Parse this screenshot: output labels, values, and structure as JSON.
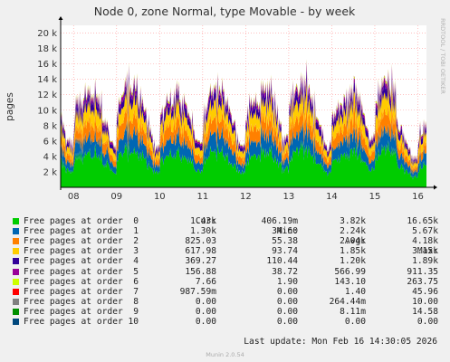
{
  "chart_data": {
    "type": "area",
    "stacked": true,
    "title": "Node 0, zone Normal, type Movable - by week",
    "ylabel": "pages",
    "xlabel": "",
    "ylim": [
      0,
      21000
    ],
    "ytick_labels": [
      "2 k",
      "4 k",
      "6 k",
      "8 k",
      "10 k",
      "12 k",
      "14 k",
      "16 k",
      "18 k",
      "20 k"
    ],
    "yticks": [
      2000,
      4000,
      6000,
      8000,
      10000,
      12000,
      14000,
      16000,
      18000,
      20000
    ],
    "x_range": [
      7.7,
      16.2
    ],
    "xtick_labels": [
      "08",
      "09",
      "10",
      "11",
      "12",
      "13",
      "14",
      "15",
      "16"
    ],
    "xticks": [
      8,
      9,
      10,
      11,
      12,
      13,
      14,
      15,
      16
    ],
    "grid": true,
    "watermark": "RRDTOOL / TOBI OETIKER",
    "approx_daily_peak_totals": [
      14300,
      15400,
      13800,
      14900,
      13900,
      16100,
      13400,
      16600,
      10200
    ],
    "series": [
      {
        "name": "Free pages at order  0",
        "color": "#00cc00",
        "cur": "1.43k",
        "min": "406.19m",
        "avg": "3.82k",
        "max": "16.65k"
      },
      {
        "name": "Free pages at order  1",
        "color": "#0066b3",
        "cur": "1.30k",
        "min": "34.60",
        "avg": "2.24k",
        "max": "5.67k"
      },
      {
        "name": "Free pages at order  2",
        "color": "#ff8000",
        "cur": "825.03",
        "min": "55.38",
        "avg": "2.04k",
        "max": "4.18k"
      },
      {
        "name": "Free pages at order  3",
        "color": "#ffcc00",
        "cur": "617.98",
        "min": "93.74",
        "avg": "1.85k",
        "max": "3.15k"
      },
      {
        "name": "Free pages at order  4",
        "color": "#330099",
        "cur": "369.27",
        "min": "110.44",
        "avg": "1.20k",
        "max": "1.89k"
      },
      {
        "name": "Free pages at order  5",
        "color": "#990099",
        "cur": "156.88",
        "min": "38.72",
        "avg": "566.99",
        "max": "911.35"
      },
      {
        "name": "Free pages at order  6",
        "color": "#ccff00",
        "cur": "7.66",
        "min": "1.90",
        "avg": "143.10",
        "max": "263.75"
      },
      {
        "name": "Free pages at order  7",
        "color": "#ff0000",
        "cur": "987.59m",
        "min": "0.00",
        "avg": "1.40",
        "max": "45.96"
      },
      {
        "name": "Free pages at order  8",
        "color": "#808080",
        "cur": "0.00",
        "min": "0.00",
        "avg": "264.44m",
        "max": "10.00"
      },
      {
        "name": "Free pages at order  9",
        "color": "#008f00",
        "cur": "0.00",
        "min": "0.00",
        "avg": "8.11m",
        "max": "14.58"
      },
      {
        "name": "Free pages at order 10",
        "color": "#00487d",
        "cur": "0.00",
        "min": "0.00",
        "avg": "0.00",
        "max": "0.00"
      }
    ]
  },
  "legend": {
    "col_cur": "Cur:",
    "col_min": "Min:",
    "col_avg": "Avg:",
    "col_max": "Max:"
  },
  "footer": {
    "last_update": "Last update: Mon Feb 16 14:30:05 2026",
    "munin_version": "Munin 2.0.54"
  }
}
